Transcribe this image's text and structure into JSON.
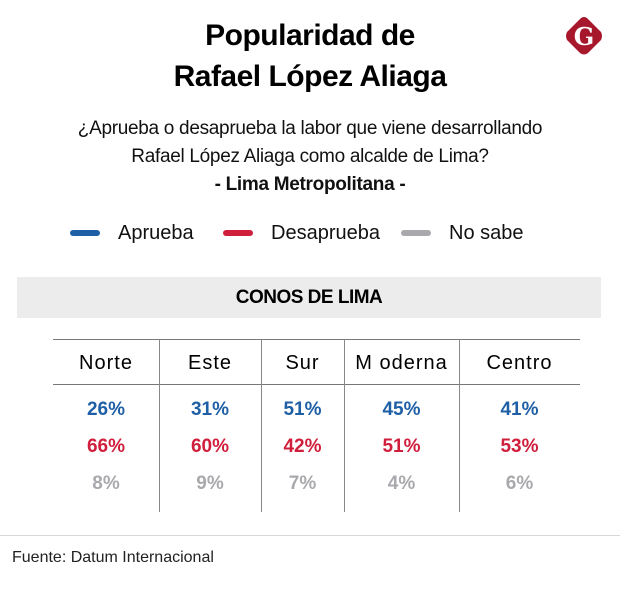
{
  "header": {
    "title_line1": "Popularidad de",
    "title_line2": "Rafael López Aliaga",
    "logo": {
      "icon": "gestion-g-logo-icon",
      "letter": "G",
      "color": "#a8182c"
    }
  },
  "question": {
    "line1": "¿Aprueba o desaprueba la labor que viene desarrollando",
    "line2": "Rafael López Aliaga como alcalde de Lima?",
    "scope": "- Lima Metropolitana -"
  },
  "chart_data": {
    "type": "table",
    "title": "Popularidad de Rafael López Aliaga",
    "subtitle": "¿Aprueba o desaprueba la labor que viene desarrollando Rafael López Aliaga como alcalde de Lima? - Lima Metropolitana -",
    "section_title": "CONOS DE LIMA",
    "categories": [
      "Norte",
      "Este",
      "Sur",
      "Moderna",
      "Centro"
    ],
    "series": [
      {
        "name": "Aprueba",
        "color": "#1f5fa6",
        "values": [
          26,
          31,
          51,
          45,
          41
        ]
      },
      {
        "name": "Desaprueba",
        "color": "#d01f3c",
        "values": [
          66,
          60,
          42,
          51,
          53
        ]
      },
      {
        "name": "No sabe",
        "color": "#a9a9ad",
        "values": [
          8,
          9,
          7,
          4,
          6
        ]
      }
    ],
    "unit": "%",
    "legend_position": "top"
  },
  "legend": [
    {
      "label": "Aprueba",
      "color": "#1f5fa6"
    },
    {
      "label": "Desaprueba",
      "color": "#d01f3c"
    },
    {
      "label": "No sabe",
      "color": "#a9a9ad"
    }
  ],
  "table": {
    "section_title": "CONOS DE LIMA",
    "columns": [
      "Norte",
      "Este",
      "Sur",
      "M oderna",
      "Centro"
    ],
    "rows": [
      [
        "26%",
        "31%",
        "51%",
        "45%",
        "41%"
      ],
      [
        "66%",
        "60%",
        "42%",
        "51%",
        "53%"
      ],
      [
        "8%",
        "9%",
        "7%",
        "4%",
        "6%"
      ]
    ]
  },
  "footer": {
    "source": "Fuente: Datum Internacional"
  }
}
